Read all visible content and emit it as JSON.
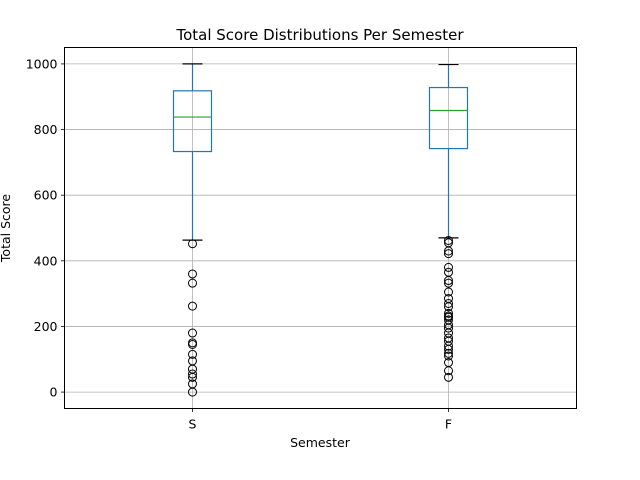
{
  "chart_data": {
    "type": "boxplot",
    "title": "Total Score Distributions Per Semester",
    "xlabel": "Semester",
    "ylabel": "Total Score",
    "ylim": [
      -50,
      1050
    ],
    "yticks": [
      0,
      200,
      400,
      600,
      800,
      1000
    ],
    "grid": true,
    "colors": {
      "box": "#1f77b4",
      "median": "#2ca02c",
      "whisker_cap": "#000000",
      "flier": "#000000",
      "grid": "#b0b0b0"
    },
    "categories": [
      "S",
      "F"
    ],
    "boxes": [
      {
        "category": "S",
        "whisker_low": 463,
        "q1": 733,
        "median": 838,
        "q3": 918,
        "whisker_high": 1000,
        "fliers": [
          452,
          360,
          332,
          262,
          180,
          150,
          145,
          115,
          95,
          70,
          55,
          45,
          25,
          0
        ]
      },
      {
        "category": "F",
        "whisker_low": 470,
        "q1": 742,
        "median": 858,
        "q3": 928,
        "whisker_high": 998,
        "fliers": [
          462,
          455,
          430,
          422,
          380,
          365,
          340,
          332,
          305,
          285,
          270,
          260,
          240,
          232,
          228,
          220,
          205,
          195,
          180,
          165,
          155,
          140,
          130,
          118,
          110,
          90,
          65,
          45
        ]
      }
    ]
  }
}
